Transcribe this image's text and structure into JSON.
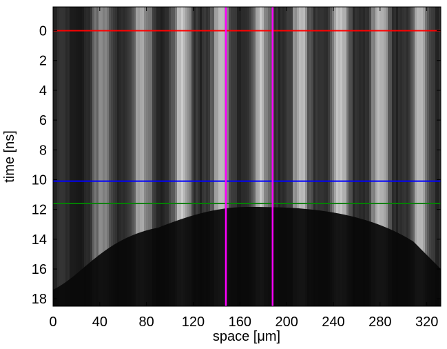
{
  "chart_data": {
    "type": "image",
    "xlabel": "space [μm]",
    "ylabel": "time [ns]",
    "xlim": [
      0,
      332
    ],
    "xticks": [
      0,
      40,
      80,
      120,
      160,
      200,
      240,
      280,
      320
    ],
    "ylim": [
      18.5,
      -1.6
    ],
    "yticks": [
      0,
      2,
      4,
      6,
      8,
      10,
      12,
      14,
      16,
      18
    ],
    "hlines": [
      {
        "value": 0,
        "color": "#ff0000"
      },
      {
        "value": 10.1,
        "color": "#0000ff"
      },
      {
        "value": 11.6,
        "color": "#008000"
      }
    ],
    "vlines": [
      {
        "value": 148,
        "color": "#ff00ff"
      },
      {
        "value": 188,
        "color": "#ff00ff"
      }
    ]
  }
}
